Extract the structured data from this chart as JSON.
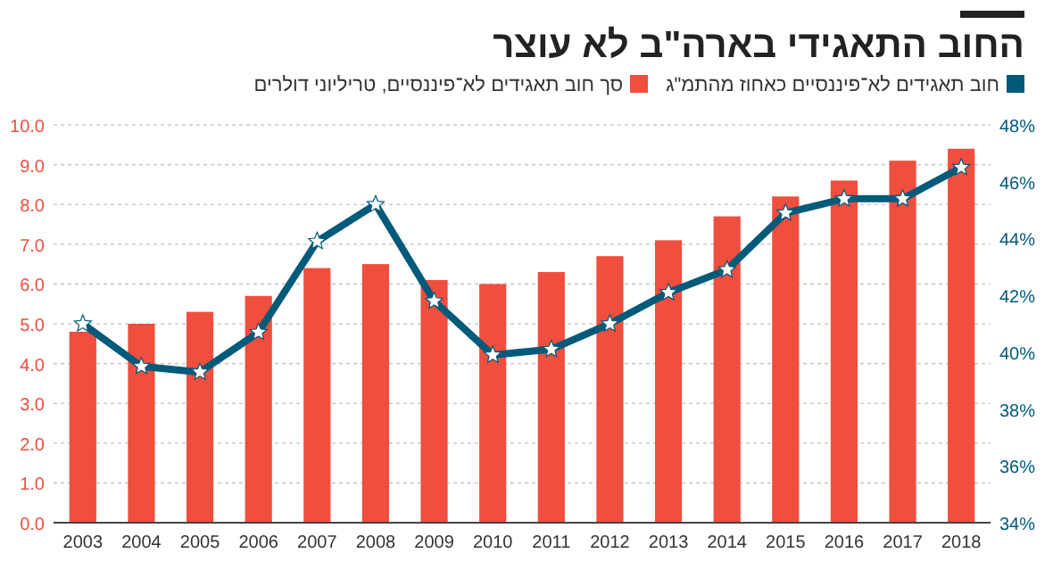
{
  "chart_data": {
    "type": "bar",
    "title": "החוב התאגידי בארה\"ב לא עוצר",
    "categories": [
      "2003",
      "2004",
      "2005",
      "2006",
      "2007",
      "2008",
      "2009",
      "2010",
      "2011",
      "2012",
      "2013",
      "2014",
      "2015",
      "2016",
      "2017",
      "2018"
    ],
    "series": [
      {
        "name": "חוב תאגידים לא־פיננסיים כאחוז מהתמ\"ג",
        "type": "line",
        "axis": "y2",
        "color": "#005a7a",
        "values": [
          41.0,
          39.5,
          39.3,
          40.7,
          43.9,
          45.2,
          41.8,
          39.9,
          40.1,
          41.0,
          42.1,
          42.9,
          44.9,
          45.4,
          45.4,
          46.5
        ]
      },
      {
        "name": "סך חוב תאגידים לא־פיננסיים, טריליוני דולרים",
        "color": "#f04e3e",
        "values": [
          4.8,
          5.0,
          5.3,
          5.7,
          6.4,
          6.5,
          6.1,
          6.0,
          6.3,
          6.7,
          7.1,
          7.7,
          8.2,
          8.6,
          9.1,
          9.4
        ]
      }
    ],
    "ylim": [
      0,
      10
    ],
    "yticks": [
      {
        "value": 0,
        "label": "0.0"
      },
      {
        "value": 1,
        "label": "1.0"
      },
      {
        "value": 2,
        "label": "2.0"
      },
      {
        "value": 3,
        "label": "3.0"
      },
      {
        "value": 4,
        "label": "4.0"
      },
      {
        "value": 5,
        "label": "5.0"
      },
      {
        "value": 6,
        "label": "6.0"
      },
      {
        "value": 7,
        "label": "7.0"
      },
      {
        "value": 8,
        "label": "8.0"
      },
      {
        "value": 9,
        "label": "9.0"
      },
      {
        "value": 10,
        "label": "10.0"
      }
    ],
    "y2lim": [
      34,
      48
    ],
    "y2ticks": [
      {
        "value": 34,
        "label": "34%"
      },
      {
        "value": 36,
        "label": "36%"
      },
      {
        "value": 38,
        "label": "38%"
      },
      {
        "value": 40,
        "label": "40%"
      },
      {
        "value": 42,
        "label": "42%"
      },
      {
        "value": 44,
        "label": "44%"
      },
      {
        "value": 46,
        "label": "46%"
      },
      {
        "value": 48,
        "label": "48%"
      }
    ],
    "grid": "y",
    "legend": "top right",
    "marker": "star",
    "line_style": "solid"
  }
}
